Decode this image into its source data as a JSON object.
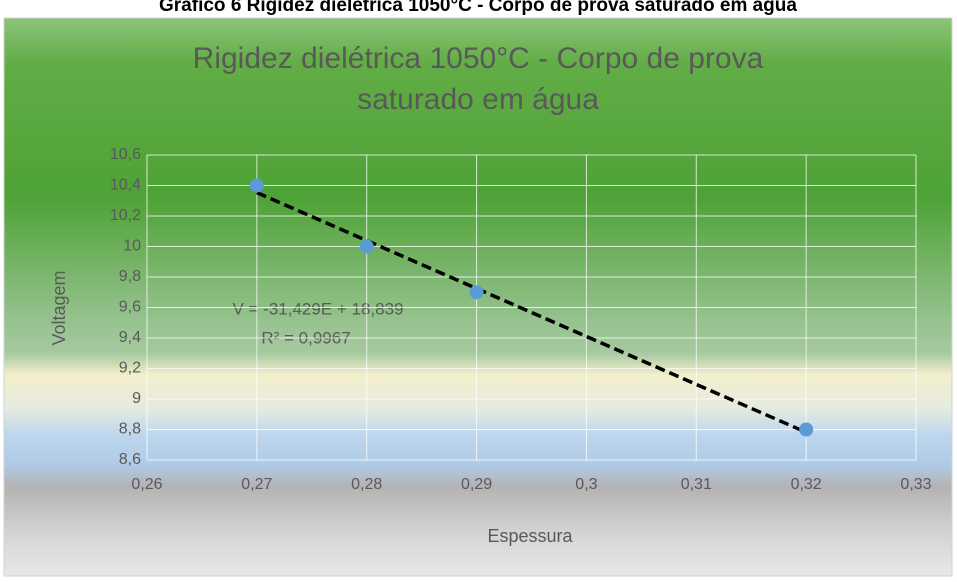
{
  "caption": "Gráfico 6 Rigidez dielétrica 1050°C - Corpo de prova saturado em água",
  "chart_data": {
    "type": "scatter",
    "title": [
      "Rigidez dielétrica 1050°C - Corpo de prova",
      "saturado em água"
    ],
    "x_label": "Espessura",
    "y_label": "Voltagem",
    "series": [
      {
        "name": "Voltagem",
        "color": "#5b9bd5",
        "x": [
          0.27,
          0.28,
          0.29,
          0.32
        ],
        "values": [
          10.4,
          10,
          9.7,
          8.8
        ]
      }
    ],
    "trendline": {
      "slope": -31.429,
      "intercept": 18.839,
      "color": "#000000",
      "equation": "V = -31,429E + 18,839",
      "r2": "R² = 0,9967"
    },
    "xlim": [
      0.26,
      0.33
    ],
    "xticks": [
      {
        "value": 0.26,
        "label": "0,26"
      },
      {
        "value": 0.27,
        "label": "0,27"
      },
      {
        "value": 0.28,
        "label": "0,28"
      },
      {
        "value": 0.29,
        "label": "0,29"
      },
      {
        "value": 0.3,
        "label": "0,3"
      },
      {
        "value": 0.31,
        "label": "0,31"
      },
      {
        "value": 0.32,
        "label": "0,32"
      },
      {
        "value": 0.33,
        "label": "0,33"
      }
    ],
    "ylim": [
      8.6,
      10.6
    ],
    "yticks": [
      {
        "value": 8.6,
        "label": "8,6"
      },
      {
        "value": 8.8,
        "label": "8,8"
      },
      9,
      {
        "value": 9.2,
        "label": "9,2"
      },
      {
        "value": 9.4,
        "label": "9,4"
      },
      {
        "value": 9.6,
        "label": "9,6"
      },
      {
        "value": 9.8,
        "label": "9,8"
      },
      10,
      {
        "value": 10.2,
        "label": "10,2"
      },
      {
        "value": 10.4,
        "label": "10,4"
      },
      {
        "value": 10.6,
        "label": "10,6"
      }
    ],
    "grid": true
  }
}
